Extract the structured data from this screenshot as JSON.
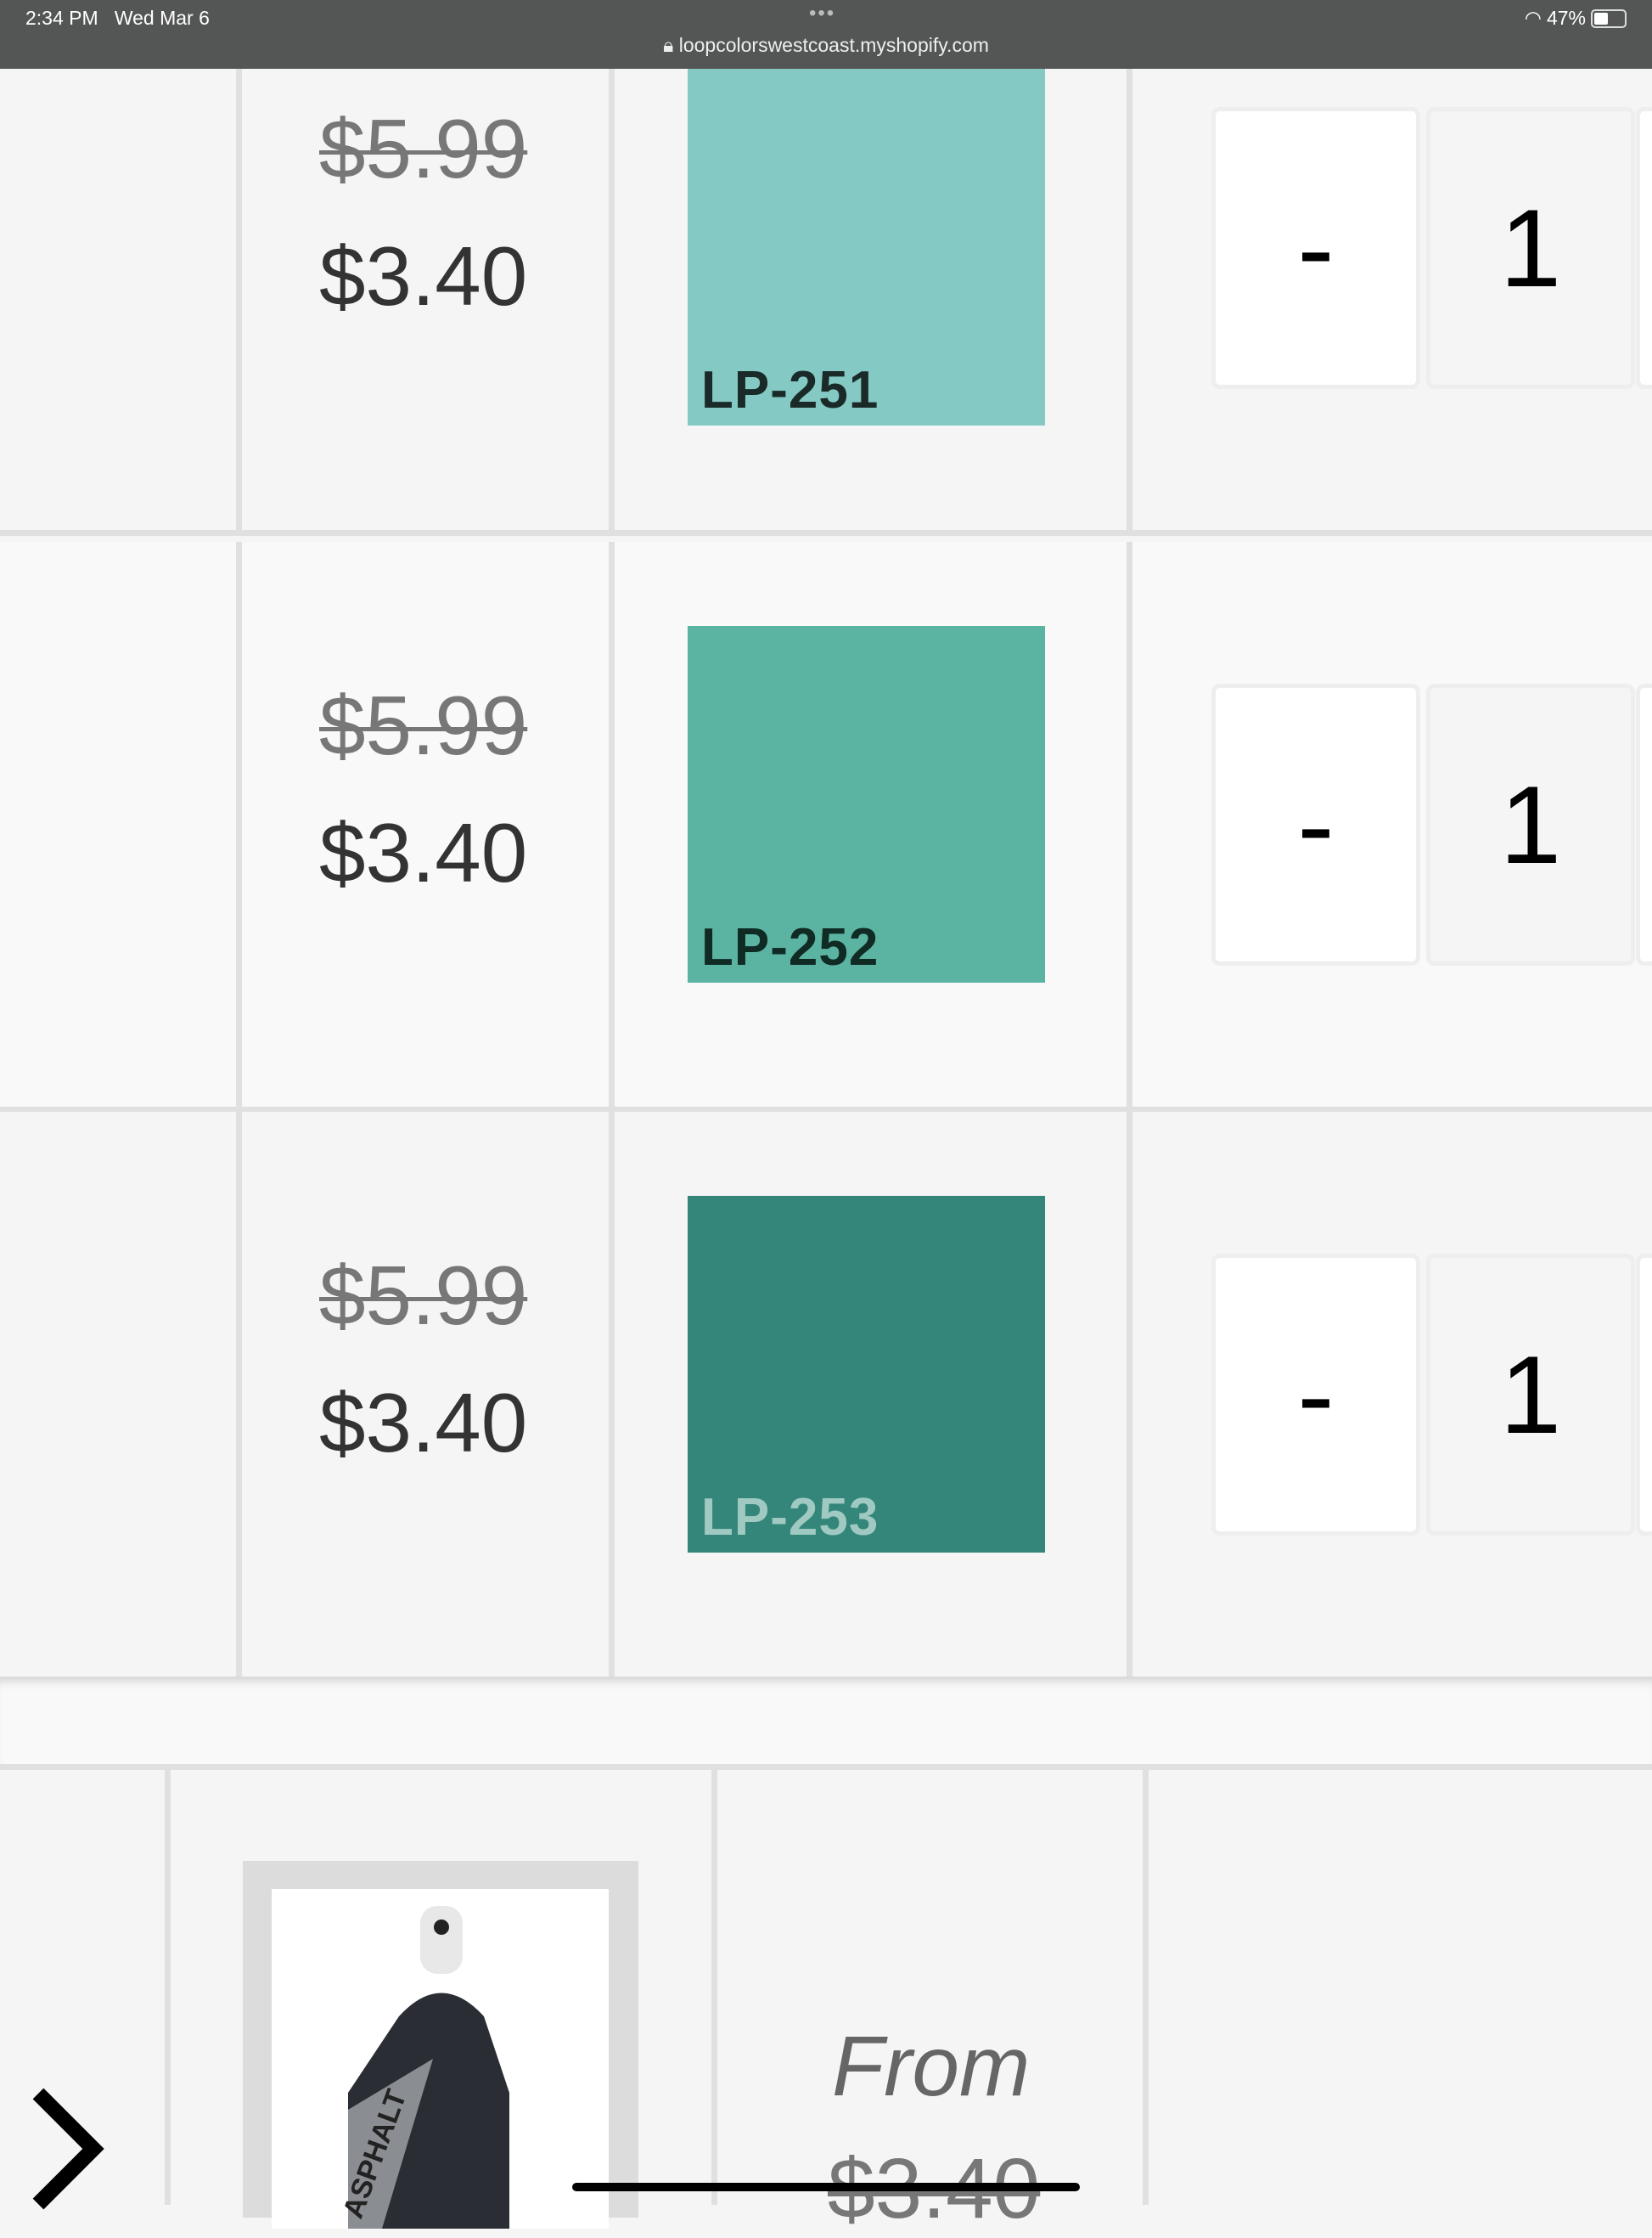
{
  "status_bar": {
    "time": "2:34 PM",
    "date": "Wed Mar 6",
    "url": "loopcolorswestcoast.myshopify.com",
    "battery": "47%",
    "battery_level": 0.47
  },
  "rows": [
    {
      "old_price": "$5.99",
      "price": "$3.40",
      "swatch_label": "LP-251",
      "swatch_color": "#84c9c3",
      "label_color": "#1a2a28",
      "qty_minus": "-",
      "qty": "1"
    },
    {
      "old_price": "$5.99",
      "price": "$3.40",
      "swatch_label": "LP-252",
      "swatch_color": "#5bb3a2",
      "label_color": "#102a24",
      "qty_minus": "-",
      "qty": "1"
    },
    {
      "old_price": "$5.99",
      "price": "$3.40",
      "swatch_label": "LP-253",
      "swatch_color": "#338679",
      "label_color": "#9fc9c1",
      "qty_minus": "-",
      "qty": "1"
    }
  ],
  "product": {
    "image_text": "ASPHALT",
    "from_label": "From",
    "from_price": "$3.40"
  }
}
